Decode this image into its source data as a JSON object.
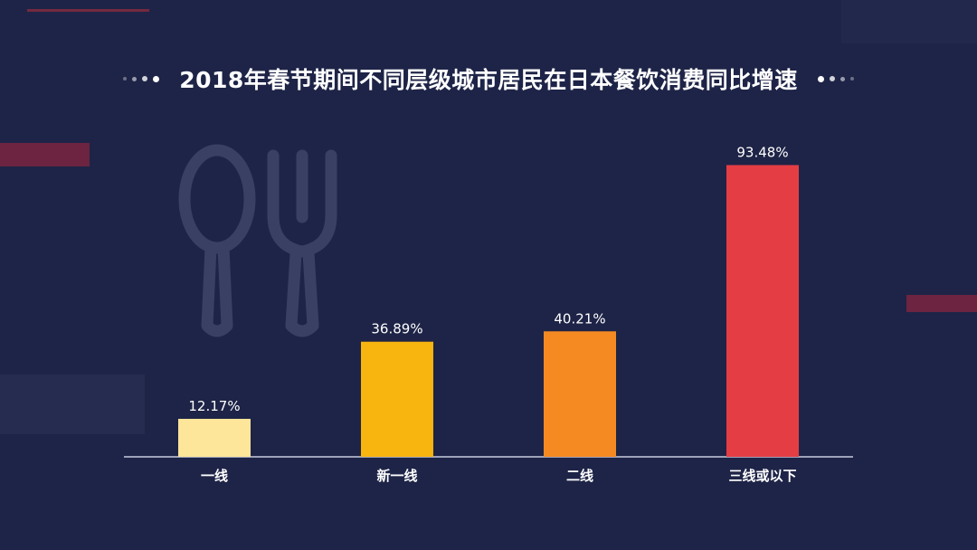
{
  "title": "2018年春节期间不同层级城市居民在日本餐饮消费同比增速",
  "colors": {
    "background": "#1e2447",
    "accent_stripe": "#8b2a3e",
    "axis": "#c9cbe0",
    "icon": "#3a4063"
  },
  "icons": [
    "spoon-icon",
    "fork-icon"
  ],
  "chart_data": {
    "type": "bar",
    "title": "2018年春节期间不同层级城市居民在日本餐饮消费同比增速",
    "categories": [
      "一线",
      "新一线",
      "二线",
      "三线或以下"
    ],
    "values": [
      12.17,
      36.89,
      40.21,
      93.48
    ],
    "value_labels": [
      "12.17%",
      "36.89%",
      "40.21%",
      "93.48%"
    ],
    "colors": [
      "#fde59a",
      "#f8b40f",
      "#f58a22",
      "#e43d44"
    ],
    "xlabel": "",
    "ylabel": "",
    "ylim": [
      0,
      100
    ],
    "grid": false,
    "legend": "none"
  }
}
